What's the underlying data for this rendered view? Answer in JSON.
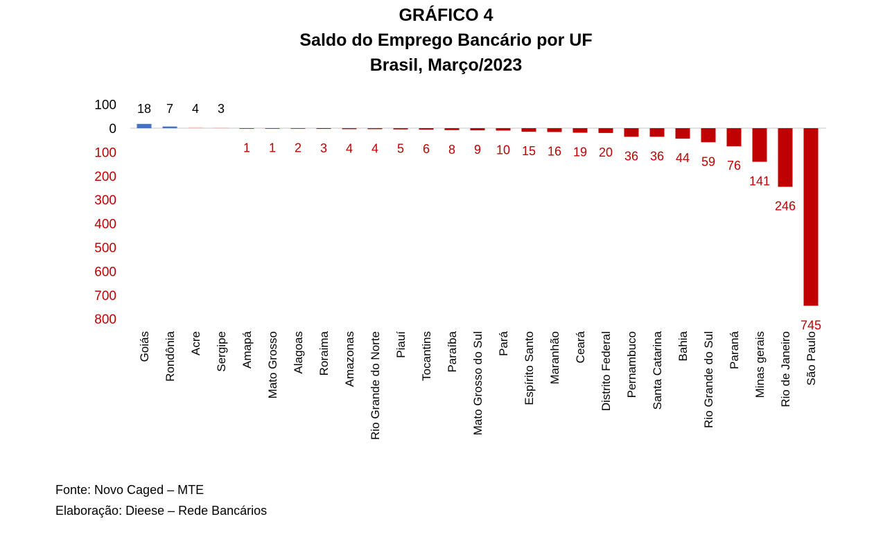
{
  "chart_data": {
    "type": "bar",
    "title": "GRÁFICO 4",
    "subtitle_lines": [
      "Saldo do Emprego Bancário por UF",
      "Brasil, Março/2023"
    ],
    "xlabel": "",
    "ylabel": "",
    "ylim": [
      -800,
      100
    ],
    "yticks": [
      100,
      0,
      -100,
      -200,
      -300,
      -400,
      -500,
      -600,
      -700,
      -800
    ],
    "ytick_labels": [
      "100",
      "0",
      "100",
      "200",
      "300",
      "400",
      "500",
      "600",
      "700",
      "800"
    ],
    "categories": [
      "Goiás",
      "Rondônia",
      "Acre",
      "Sergipe",
      "Amapá",
      "Mato Grosso",
      "Alagoas",
      "Roraima",
      "Amazonas",
      "Rio Grande do Norte",
      "Piauí",
      "Tocantins",
      "Paraíba",
      "Mato Grosso do Sul",
      "Pará",
      "Espírito Santo",
      "Maranhão",
      "Ceará",
      "Distrito Federal",
      "Pernambuco",
      "Santa Catarina",
      "Bahia",
      "Rio Grande do Sul",
      "Paraná",
      "Minas gerais",
      "Rio de Janeiro",
      "São Paulo"
    ],
    "values": [
      18,
      7,
      4,
      3,
      -1,
      -1,
      -2,
      -3,
      -4,
      -4,
      -5,
      -6,
      -8,
      -9,
      -10,
      -15,
      -16,
      -19,
      -20,
      -36,
      -36,
      -44,
      -59,
      -76,
      -141,
      -246,
      -745
    ],
    "data_labels": [
      "18",
      "7",
      "4",
      "3",
      "1",
      "1",
      "2",
      "3",
      "4",
      "4",
      "5",
      "6",
      "8",
      "9",
      "10",
      "15",
      "16",
      "19",
      "20",
      "36",
      "36",
      "44",
      "59",
      "76",
      "141",
      "246",
      "745"
    ],
    "colors": {
      "positive": "#4472c4",
      "positive_small": "#f4c7c3",
      "negative": "#c00000",
      "axis": "#d9d9d9"
    },
    "grid": false,
    "legend": "none"
  },
  "footer": {
    "source": "Fonte: Novo Caged – MTE",
    "credit": "Elaboração: Dieese – Rede Bancários"
  }
}
